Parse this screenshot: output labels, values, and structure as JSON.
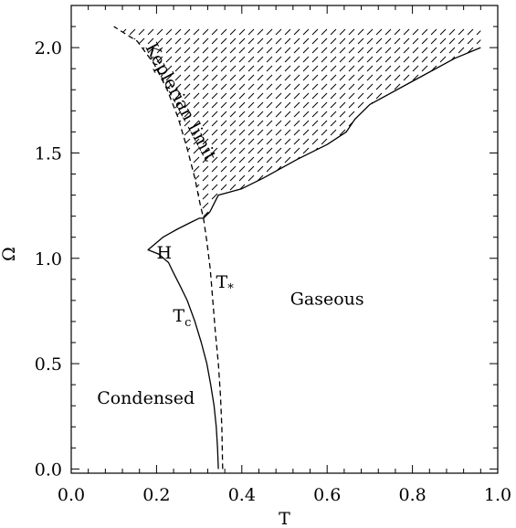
{
  "chart_data": {
    "type": "line",
    "title": "",
    "xlabel": "T",
    "ylabel": "Ω",
    "xlim": [
      0.0,
      1.0
    ],
    "ylim": [
      -0.02,
      2.2
    ],
    "x_ticks": [
      "0.0",
      "0.2",
      "0.4",
      "0.6",
      "0.8",
      "1.0"
    ],
    "y_ticks": [
      "0.0",
      "0.5",
      "1.0",
      "1.5",
      "2.0"
    ],
    "grid": false,
    "legend": "none",
    "series": [
      {
        "style": "solid",
        "x": [
          0.345,
          0.343,
          0.34,
          0.335,
          0.327,
          0.318,
          0.305,
          0.29,
          0.272,
          0.255,
          0.24,
          0.228,
          0.205,
          0.18,
          0.215,
          0.25,
          0.28,
          0.3,
          0.31,
          0.325
        ],
        "y": [
          0.0,
          0.1,
          0.2,
          0.3,
          0.4,
          0.5,
          0.6,
          0.7,
          0.8,
          0.87,
          0.93,
          0.98,
          1.02,
          1.04,
          1.1,
          1.14,
          1.17,
          1.19,
          1.19,
          1.22
        ]
      },
      {
        "style": "solid",
        "x": [
          0.325,
          0.335,
          0.345,
          0.4,
          0.45,
          0.53,
          0.6,
          0.645,
          0.665,
          0.7,
          0.8,
          0.9,
          0.96
        ],
        "y": [
          1.22,
          1.26,
          1.3,
          1.33,
          1.38,
          1.47,
          1.54,
          1.6,
          1.66,
          1.73,
          1.84,
          1.95,
          2.0
        ]
      },
      {
        "style": "dashed",
        "x": [
          0.355,
          0.353,
          0.35,
          0.345,
          0.338,
          0.332,
          0.326,
          0.318,
          0.31,
          0.302,
          0.29,
          0.272,
          0.25,
          0.225,
          0.195,
          0.155,
          0.1
        ],
        "y": [
          0.0,
          0.2,
          0.35,
          0.5,
          0.65,
          0.8,
          0.95,
          1.08,
          1.19,
          1.26,
          1.38,
          1.52,
          1.67,
          1.8,
          1.92,
          2.03,
          2.1
        ]
      }
    ],
    "hatched_region": {
      "x": [
        0.1,
        0.155,
        0.195,
        0.225,
        0.25,
        0.272,
        0.29,
        0.302,
        0.31,
        0.325,
        0.335,
        0.345,
        0.4,
        0.45,
        0.53,
        0.6,
        0.645,
        0.665,
        0.7,
        0.8,
        0.9,
        0.96,
        0.96
      ],
      "y": [
        2.1,
        2.03,
        1.92,
        1.8,
        1.67,
        1.52,
        1.38,
        1.26,
        1.19,
        1.22,
        1.26,
        1.3,
        1.33,
        1.38,
        1.47,
        1.54,
        1.6,
        1.66,
        1.73,
        1.84,
        1.95,
        2.0,
        2.1
      ]
    },
    "annotations": [
      {
        "text": "Keplerian limit",
        "x": 0.245,
        "y": 1.73,
        "rotate": 62
      },
      {
        "text": "H",
        "x": 0.218,
        "y": 1.0
      },
      {
        "text": "T",
        "sub": "*",
        "x": 0.36,
        "y": 0.86
      },
      {
        "text": "T",
        "sub": "c",
        "x": 0.26,
        "y": 0.7
      },
      {
        "text": "Gaseous",
        "x": 0.6,
        "y": 0.78
      },
      {
        "text": "Condensed",
        "x": 0.175,
        "y": 0.31
      }
    ]
  }
}
